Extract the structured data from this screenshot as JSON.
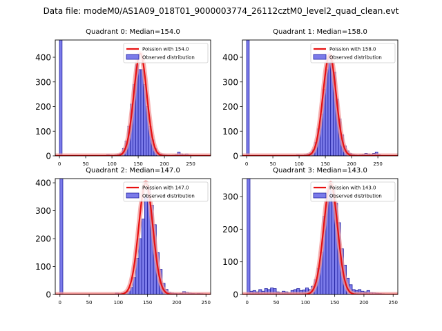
{
  "suptitle": "Data file: modeM0/AS1A09_018T01_9000003774_26112cztM0_level2_quad_clean.evt",
  "chart_data": [
    {
      "type": "bar",
      "title": "Quadrant 0: Median=154.0",
      "xlabel": "",
      "ylabel": "",
      "xlim": [
        -8,
        288
      ],
      "ylim": [
        0,
        470
      ],
      "xticks": [
        0,
        50,
        100,
        150,
        200,
        250
      ],
      "yticks": [
        0,
        100,
        200,
        300,
        400
      ],
      "bin_width": 5,
      "bins": [
        [
          0,
          470
        ],
        [
          90,
          5
        ],
        [
          95,
          3
        ],
        [
          100,
          2
        ],
        [
          105,
          4
        ],
        [
          110,
          6
        ],
        [
          115,
          10
        ],
        [
          120,
          30
        ],
        [
          125,
          60
        ],
        [
          130,
          120
        ],
        [
          135,
          210
        ],
        [
          140,
          290
        ],
        [
          145,
          370
        ],
        [
          150,
          350
        ],
        [
          155,
          350
        ],
        [
          160,
          290
        ],
        [
          165,
          200
        ],
        [
          170,
          120
        ],
        [
          175,
          65
        ],
        [
          180,
          30
        ],
        [
          185,
          15
        ],
        [
          190,
          8
        ],
        [
          195,
          5
        ],
        [
          200,
          4
        ],
        [
          205,
          3
        ],
        [
          210,
          2
        ],
        [
          215,
          3
        ],
        [
          220,
          5
        ],
        [
          225,
          15
        ],
        [
          230,
          8
        ],
        [
          235,
          5
        ],
        [
          240,
          8
        ],
        [
          245,
          3
        ],
        [
          250,
          2
        ]
      ],
      "poisson_peak": 415,
      "legend_location": "upper right",
      "legend": [
        "Poission with 154.0",
        "Observed distribution"
      ]
    },
    {
      "type": "bar",
      "title": "Quadrant 1: Median=158.0",
      "xlabel": "",
      "ylabel": "",
      "xlim": [
        -8,
        288
      ],
      "ylim": [
        0,
        470
      ],
      "xticks": [
        0,
        50,
        100,
        150,
        200,
        250
      ],
      "yticks": [
        0,
        100,
        200,
        300,
        400
      ],
      "bin_width": 5,
      "bins": [
        [
          0,
          470
        ],
        [
          95,
          4
        ],
        [
          100,
          3
        ],
        [
          105,
          3
        ],
        [
          110,
          5
        ],
        [
          115,
          8
        ],
        [
          120,
          12
        ],
        [
          125,
          25
        ],
        [
          130,
          55
        ],
        [
          135,
          110
        ],
        [
          140,
          170
        ],
        [
          145,
          270
        ],
        [
          150,
          350
        ],
        [
          155,
          400
        ],
        [
          160,
          380
        ],
        [
          165,
          340
        ],
        [
          170,
          230
        ],
        [
          175,
          150
        ],
        [
          180,
          85
        ],
        [
          185,
          40
        ],
        [
          190,
          20
        ],
        [
          195,
          10
        ],
        [
          200,
          6
        ],
        [
          205,
          4
        ],
        [
          210,
          3
        ],
        [
          215,
          4
        ],
        [
          220,
          6
        ],
        [
          225,
          10
        ],
        [
          230,
          8
        ],
        [
          235,
          5
        ],
        [
          240,
          10
        ],
        [
          245,
          15
        ],
        [
          250,
          5
        ]
      ],
      "poisson_peak": 410,
      "legend_location": "upper right",
      "legend": [
        "Poission with 158.0",
        "Observed distribution"
      ]
    },
    {
      "type": "bar",
      "title": "Quadrant 2: Median=147.0",
      "xlabel": "",
      "ylabel": "",
      "xlim": [
        -8,
        258
      ],
      "ylim": [
        0,
        415
      ],
      "xticks": [
        0,
        50,
        100,
        150,
        200,
        250
      ],
      "yticks": [
        0,
        100,
        200,
        300,
        400
      ],
      "bin_width": 5,
      "bins": [
        [
          0,
          415
        ],
        [
          95,
          5
        ],
        [
          100,
          3
        ],
        [
          105,
          5
        ],
        [
          110,
          8
        ],
        [
          115,
          12
        ],
        [
          120,
          25
        ],
        [
          125,
          60
        ],
        [
          130,
          130
        ],
        [
          135,
          200
        ],
        [
          140,
          270
        ],
        [
          145,
          350
        ],
        [
          150,
          380
        ],
        [
          155,
          320
        ],
        [
          160,
          250
        ],
        [
          165,
          150
        ],
        [
          170,
          90
        ],
        [
          175,
          40
        ],
        [
          180,
          18
        ],
        [
          185,
          8
        ],
        [
          190,
          5
        ],
        [
          195,
          4
        ],
        [
          200,
          3
        ],
        [
          205,
          4
        ],
        [
          210,
          10
        ],
        [
          215,
          8
        ],
        [
          220,
          5
        ],
        [
          225,
          4
        ],
        [
          230,
          3
        ],
        [
          235,
          4
        ],
        [
          240,
          3
        ],
        [
          245,
          2
        ]
      ],
      "poisson_peak": 400,
      "legend_location": "upper right",
      "legend": [
        "Poission with 147.0",
        "Observed distribution"
      ]
    },
    {
      "type": "bar",
      "title": "Quadrant 3: Median=143.0",
      "xlabel": "",
      "ylabel": "",
      "xlim": [
        -8,
        258
      ],
      "ylim": [
        0,
        355
      ],
      "xticks": [
        0,
        50,
        100,
        150,
        200,
        250
      ],
      "yticks": [
        0,
        100,
        200,
        300
      ],
      "bin_width": 5,
      "bins": [
        [
          0,
          355
        ],
        [
          5,
          10
        ],
        [
          10,
          12
        ],
        [
          15,
          8
        ],
        [
          20,
          15
        ],
        [
          25,
          10
        ],
        [
          30,
          18
        ],
        [
          35,
          15
        ],
        [
          40,
          20
        ],
        [
          45,
          18
        ],
        [
          50,
          8
        ],
        [
          55,
          6
        ],
        [
          60,
          10
        ],
        [
          65,
          8
        ],
        [
          70,
          5
        ],
        [
          75,
          12
        ],
        [
          80,
          15
        ],
        [
          85,
          18
        ],
        [
          90,
          12
        ],
        [
          95,
          14
        ],
        [
          100,
          20
        ],
        [
          105,
          15
        ],
        [
          110,
          25
        ],
        [
          115,
          45
        ],
        [
          120,
          80
        ],
        [
          125,
          130
        ],
        [
          130,
          240
        ],
        [
          135,
          300
        ],
        [
          140,
          330
        ],
        [
          145,
          320
        ],
        [
          150,
          280
        ],
        [
          155,
          220
        ],
        [
          160,
          140
        ],
        [
          165,
          90
        ],
        [
          170,
          50
        ],
        [
          175,
          30
        ],
        [
          180,
          15
        ],
        [
          185,
          12
        ],
        [
          190,
          15
        ],
        [
          195,
          10
        ],
        [
          200,
          8
        ],
        [
          205,
          12
        ],
        [
          210,
          6
        ],
        [
          215,
          5
        ],
        [
          220,
          4
        ],
        [
          225,
          3
        ],
        [
          230,
          2
        ]
      ],
      "poisson_peak": 340,
      "legend_location": "upper right",
      "legend": [
        "Poission with 143.0",
        "Observed distribution"
      ]
    }
  ],
  "colors": {
    "bar_fill": "#7b7bea",
    "bar_edge": "#1f1f9e",
    "poisson": "#e81010",
    "highlight": "#f39a9a"
  }
}
